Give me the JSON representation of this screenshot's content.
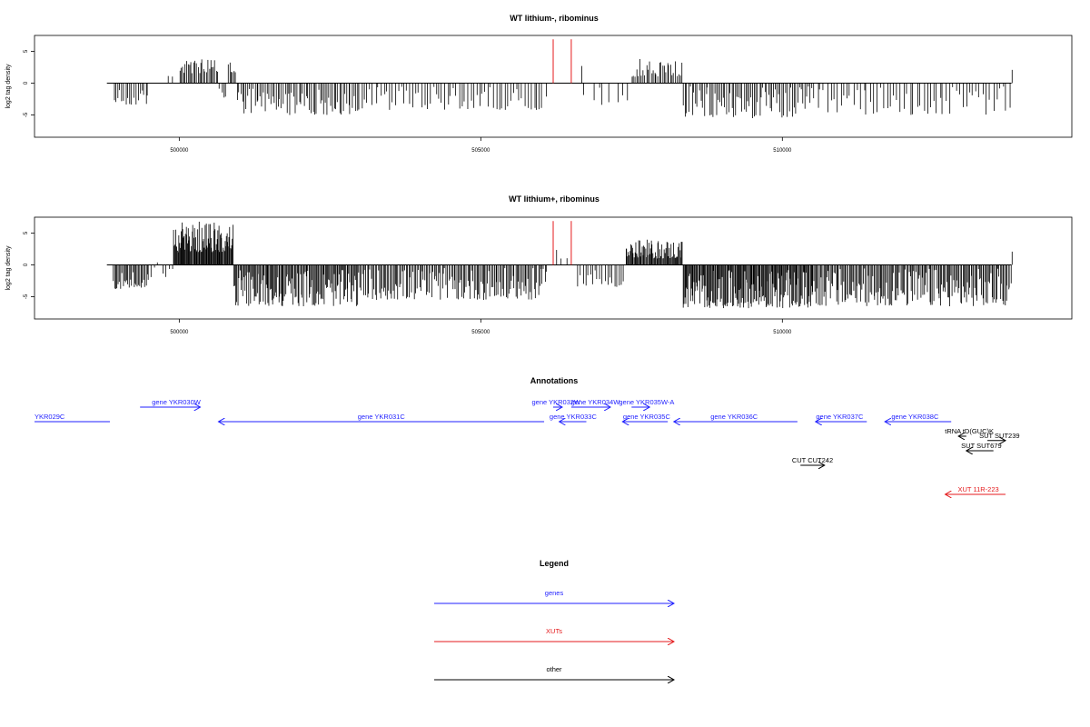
{
  "chart_data": [
    {
      "type": "bar",
      "title": "WT lithium-, ribominus",
      "ylabel": "log2 tag density",
      "xlim": [
        497600,
        514800
      ],
      "ylim": [
        -8.5,
        7.5
      ],
      "xticks": [
        500000,
        505000,
        510000
      ],
      "xtick_labels": [
        "500000",
        "505000",
        "510000"
      ],
      "yticks": [
        -5,
        0,
        5
      ],
      "ytick_labels": [
        "-5",
        "0",
        "5"
      ],
      "grid": false,
      "baseline_range": [
        498800,
        513800
      ],
      "highlight_color": "#e41a1c",
      "highlight_lines": [
        {
          "x": 506200,
          "y": 6.9
        },
        {
          "x": 506500,
          "y": 6.9
        }
      ],
      "segments": [
        {
          "x0": 498900,
          "x1": 499500,
          "min": -3.5,
          "max": -1.0,
          "n": 18
        },
        {
          "x0": 499800,
          "x1": 499900,
          "min": 1.0,
          "max": 2.0,
          "n": 2
        },
        {
          "x0": 500000,
          "x1": 500650,
          "min": 1.5,
          "max": 3.8,
          "n": 28
        },
        {
          "x0": 500650,
          "x1": 500800,
          "min": -2.5,
          "max": -0.5,
          "n": 4
        },
        {
          "x0": 500800,
          "x1": 500950,
          "min": 1.5,
          "max": 4.2,
          "n": 6
        },
        {
          "x0": 500950,
          "x1": 503000,
          "min": -5.0,
          "max": -0.8,
          "n": 70
        },
        {
          "x0": 503000,
          "x1": 506100,
          "min": -4.2,
          "max": -0.5,
          "n": 65
        },
        {
          "x0": 506650,
          "x1": 506700,
          "min": 1.5,
          "max": 3.0,
          "n": 1
        },
        {
          "x0": 506700,
          "x1": 507500,
          "min": -3.5,
          "max": -0.5,
          "n": 8
        },
        {
          "x0": 507500,
          "x1": 508350,
          "min": 1.0,
          "max": 4.0,
          "n": 32
        },
        {
          "x0": 508350,
          "x1": 510500,
          "min": -5.5,
          "max": -0.5,
          "n": 75
        },
        {
          "x0": 510500,
          "x1": 513800,
          "min": -5.0,
          "max": -0.5,
          "n": 60
        },
        {
          "x0": 513800,
          "x1": 513820,
          "min": 1.5,
          "max": 2.5,
          "n": 1
        }
      ]
    },
    {
      "type": "bar",
      "title": "WT lithium+, ribominus",
      "ylabel": "log2 tag density",
      "xlim": [
        497600,
        514800
      ],
      "ylim": [
        -8.5,
        7.5
      ],
      "xticks": [
        500000,
        505000,
        510000
      ],
      "xtick_labels": [
        "500000",
        "505000",
        "510000"
      ],
      "yticks": [
        -5,
        0,
        5
      ],
      "ytick_labels": [
        "-5",
        "0",
        "5"
      ],
      "grid": false,
      "baseline_range": [
        498800,
        513800
      ],
      "highlight_color": "#e41a1c",
      "highlight_lines": [
        {
          "x": 506200,
          "y": 6.9
        },
        {
          "x": 506500,
          "y": 6.9
        }
      ],
      "segments": [
        {
          "x0": 498900,
          "x1": 499500,
          "min": -3.8,
          "max": -0.8,
          "n": 30
        },
        {
          "x0": 499500,
          "x1": 499900,
          "min": -2.0,
          "max": 1.0,
          "n": 8
        },
        {
          "x0": 499900,
          "x1": 500900,
          "min": 2.0,
          "max": 6.8,
          "n": 90
        },
        {
          "x0": 500900,
          "x1": 503000,
          "min": -6.5,
          "max": -0.8,
          "n": 130
        },
        {
          "x0": 503000,
          "x1": 506100,
          "min": -5.5,
          "max": -0.5,
          "n": 140
        },
        {
          "x0": 506250,
          "x1": 506450,
          "min": 1.0,
          "max": 2.8,
          "n": 3
        },
        {
          "x0": 506600,
          "x1": 507400,
          "min": -3.5,
          "max": -0.5,
          "n": 20
        },
        {
          "x0": 507400,
          "x1": 508350,
          "min": 1.0,
          "max": 4.0,
          "n": 70
        },
        {
          "x0": 508350,
          "x1": 510500,
          "min": -6.8,
          "max": -0.8,
          "n": 160
        },
        {
          "x0": 510500,
          "x1": 513800,
          "min": -6.5,
          "max": -0.5,
          "n": 170
        },
        {
          "x0": 513800,
          "x1": 513820,
          "min": 1.5,
          "max": 2.6,
          "n": 1
        }
      ]
    }
  ],
  "annotations": {
    "title": "Annotations",
    "colors": {
      "genes": "#1f1fff",
      "xuts": "#e41a1c",
      "other": "#000000"
    },
    "items": [
      {
        "label": "YKR029C",
        "color": "#1f1fff",
        "row": 0,
        "x0": 497600,
        "x1": 498850,
        "dir": "none",
        "label_x": 497600,
        "anchor": "start"
      },
      {
        "label": "gene YKR030W",
        "color": "#1f1fff",
        "row": -1,
        "x0": 499350,
        "x1": 500350,
        "dir": "right",
        "label_x": 499950,
        "anchor": "middle"
      },
      {
        "label": "gene YKR031C",
        "color": "#1f1fff",
        "row": 0,
        "x0": 500650,
        "x1": 506050,
        "dir": "left",
        "label_x": 503350,
        "anchor": "middle"
      },
      {
        "label": "gene YKR032W",
        "color": "#1f1fff",
        "row": -1,
        "x0": 506200,
        "x1": 506350,
        "dir": "right",
        "label_x": 506250,
        "anchor": "middle"
      },
      {
        "label": "gene YKR034W",
        "color": "#1f1fff",
        "row": -1,
        "x0": 506500,
        "x1": 507150,
        "dir": "right",
        "label_x": 506900,
        "anchor": "middle"
      },
      {
        "label": "gene YKR033C",
        "color": "#1f1fff",
        "row": 0,
        "x0": 506300,
        "x1": 506750,
        "dir": "left",
        "label_x": 506530,
        "anchor": "middle"
      },
      {
        "label": "gene YKR035W-A",
        "color": "#1f1fff",
        "row": -1,
        "x0": 507500,
        "x1": 507800,
        "dir": "right",
        "label_x": 507750,
        "anchor": "middle"
      },
      {
        "label": "gene YKR035C",
        "color": "#1f1fff",
        "row": 0,
        "x0": 507350,
        "x1": 508100,
        "dir": "left",
        "label_x": 507750,
        "anchor": "middle"
      },
      {
        "label": "gene YKR036C",
        "color": "#1f1fff",
        "row": 0,
        "x0": 508200,
        "x1": 510250,
        "dir": "left",
        "label_x": 509200,
        "anchor": "middle"
      },
      {
        "label": "gene YKR037C",
        "color": "#1f1fff",
        "row": 0,
        "x0": 510550,
        "x1": 511400,
        "dir": "left",
        "label_x": 510950,
        "anchor": "middle"
      },
      {
        "label": "gene YKR038C",
        "color": "#1f1fff",
        "row": 0,
        "x0": 511700,
        "x1": 512800,
        "dir": "left",
        "label_x": 512200,
        "anchor": "middle"
      },
      {
        "label": "tRNA tD(GUC)K",
        "color": "#000000",
        "row": 1,
        "x0": 512920,
        "x1": 513050,
        "dir": "left",
        "label_x": 513100,
        "anchor": "middle"
      },
      {
        "label": "SUT SUT239",
        "color": "#000000",
        "row": 1.3,
        "x0": 513400,
        "x1": 513700,
        "dir": "right",
        "label_x": 513600,
        "anchor": "middle"
      },
      {
        "label": "SUT SUT679",
        "color": "#000000",
        "row": 2,
        "x0": 513050,
        "x1": 513500,
        "dir": "left",
        "label_x": 513300,
        "anchor": "middle"
      },
      {
        "label": "CUT CUT242",
        "color": "#000000",
        "row": 3,
        "x0": 510300,
        "x1": 510700,
        "dir": "right",
        "label_x": 510500,
        "anchor": "middle"
      },
      {
        "label": "XUT 11R-223",
        "color": "#e41a1c",
        "row": 5,
        "x0": 512700,
        "x1": 513700,
        "dir": "left",
        "label_x": 513250,
        "anchor": "middle"
      }
    ]
  },
  "legend": {
    "title": "Legend",
    "items": [
      {
        "label": "genes",
        "color": "#1f1fff"
      },
      {
        "label": "XUTs",
        "color": "#e41a1c"
      },
      {
        "label": "other",
        "color": "#000000"
      }
    ]
  }
}
